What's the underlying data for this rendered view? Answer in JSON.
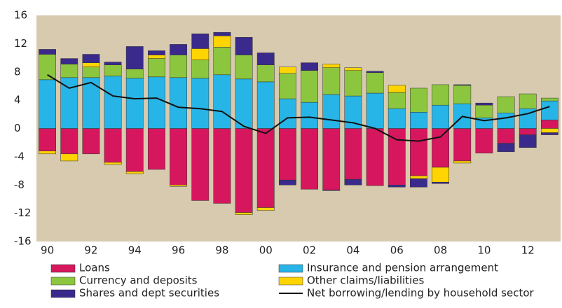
{
  "chart_data": {
    "type": "bar",
    "categories": [
      "90",
      null,
      "92",
      null,
      "94",
      null,
      "96",
      null,
      "98",
      null,
      "00",
      null,
      "02",
      null,
      "04",
      null,
      "06",
      null,
      "08",
      null,
      "10",
      null,
      "12",
      null
    ],
    "ylim": [
      -16,
      16
    ],
    "yticks": [
      -16,
      -12,
      -8,
      -4,
      0,
      4,
      8,
      12,
      16
    ],
    "series": [
      {
        "name": "Loans",
        "color": "#d6175e",
        "values": [
          -3.2,
          -3.6,
          -3.6,
          -4.8,
          -6.1,
          -5.8,
          -8.0,
          -10.2,
          -10.6,
          -11.9,
          -11.2,
          -7.3,
          -8.6,
          -8.7,
          -7.2,
          -8.1,
          -8.0,
          -6.7,
          -5.5,
          -4.6,
          -3.5,
          -2.1,
          -0.9,
          1.2
        ]
      },
      {
        "name": "Insurance and pension arrangement",
        "color": "#27b4e6",
        "values": [
          6.9,
          7.2,
          7.2,
          7.4,
          7.1,
          7.3,
          7.2,
          7.1,
          7.6,
          7.0,
          6.6,
          4.2,
          3.7,
          4.8,
          4.6,
          5.0,
          2.8,
          2.3,
          3.3,
          3.5,
          1.5,
          2.2,
          2.8,
          2.7
        ]
      },
      {
        "name": "Currency and deposits",
        "color": "#8cc63e",
        "values": [
          3.6,
          1.9,
          1.5,
          1.6,
          1.3,
          2.6,
          3.2,
          2.6,
          3.9,
          3.4,
          2.4,
          3.6,
          4.5,
          3.8,
          3.6,
          2.9,
          2.3,
          3.4,
          2.9,
          2.6,
          1.8,
          2.3,
          2.1,
          0.4
        ]
      },
      {
        "name": "Other claims/liabilities",
        "color": "#ffd400",
        "values": [
          -0.4,
          -1.0,
          0.6,
          -0.3,
          -0.3,
          0.5,
          -0.2,
          1.6,
          1.6,
          -0.3,
          -0.4,
          0.9,
          0,
          0.5,
          0.4,
          0,
          1.0,
          -0.4,
          -2.1,
          -0.3,
          0,
          0,
          0,
          -0.6
        ]
      },
      {
        "name": "Shares and dept securities",
        "color": "#3a2a8c",
        "values": [
          0.7,
          0.8,
          1.2,
          0.4,
          3.2,
          0.6,
          1.5,
          2.1,
          0.5,
          2.5,
          1.7,
          -0.7,
          1.1,
          -0.1,
          -0.8,
          0.2,
          -0.3,
          -1.2,
          -0.2,
          0.1,
          0.3,
          -1.2,
          -1.8,
          -0.3
        ]
      }
    ],
    "line": {
      "name": "Net borrowing/lending by household sector",
      "color": "#111111",
      "values": [
        7.6,
        5.7,
        6.5,
        4.6,
        4.2,
        4.3,
        3.0,
        2.8,
        2.4,
        0.3,
        -0.7,
        1.5,
        1.6,
        1.2,
        0.8,
        0,
        -1.6,
        -1.8,
        -1.2,
        1.7,
        1.1,
        1.5,
        2.1,
        3.1
      ]
    },
    "background": "#d7caae"
  }
}
